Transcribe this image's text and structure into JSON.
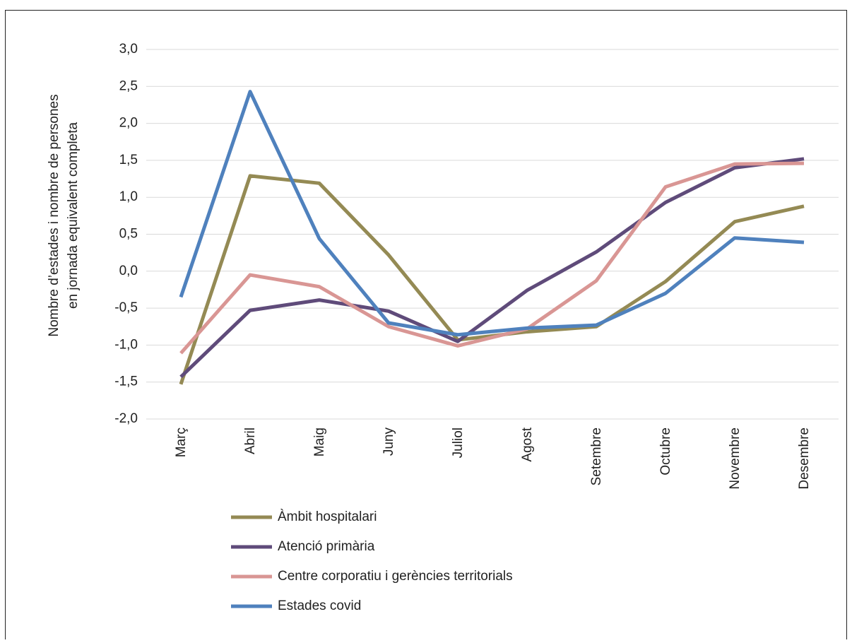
{
  "chart_data": {
    "type": "line",
    "y_label": [
      "Nombre d’estades i nombre de persones",
      "en jornada equivalent completa"
    ],
    "categories": [
      "Març",
      "Abril",
      "Maig",
      "Juny",
      "Juliol",
      "Agost",
      "Setembre",
      "Octubre",
      "Novembre",
      "Desembre"
    ],
    "series": [
      {
        "name": "Àmbit hospitalari",
        "color": "#948a54",
        "values": [
          -1.53,
          1.29,
          1.19,
          0.22,
          -0.93,
          -0.82,
          -0.75,
          -0.14,
          0.67,
          0.88
        ]
      },
      {
        "name": "Atenció primària",
        "color": "#5f4b7a",
        "values": [
          -1.43,
          -0.53,
          -0.39,
          -0.54,
          -0.95,
          -0.26,
          0.26,
          0.93,
          1.4,
          1.52
        ]
      },
      {
        "name": "Centre corporatiu i gerències territorials",
        "color": "#d99694",
        "values": [
          -1.11,
          -0.05,
          -0.21,
          -0.75,
          -1.01,
          -0.78,
          -0.13,
          1.14,
          1.45,
          1.46
        ]
      },
      {
        "name": "Estades covid",
        "color": "#4f81bd",
        "values": [
          -0.35,
          2.43,
          0.44,
          -0.7,
          -0.86,
          -0.77,
          -0.73,
          -0.3,
          0.45,
          0.39
        ]
      }
    ],
    "ylim": [
      -2,
      3
    ],
    "yticks": [
      {
        "value": -2,
        "label": "-2,0"
      },
      {
        "value": -1.5,
        "label": "-1,5"
      },
      {
        "value": -1,
        "label": "-1,0"
      },
      {
        "value": -0.5,
        "label": "-0,5"
      },
      {
        "value": 0,
        "label": "0,0"
      },
      {
        "value": 0.5,
        "label": "0,5"
      },
      {
        "value": 1,
        "label": "1,0"
      },
      {
        "value": 1.5,
        "label": "1,5"
      },
      {
        "value": 2,
        "label": "2,0"
      },
      {
        "value": 2.5,
        "label": "2,5"
      },
      {
        "value": 3,
        "label": "3,0"
      }
    ],
    "grid": true,
    "legend": "bottom"
  }
}
